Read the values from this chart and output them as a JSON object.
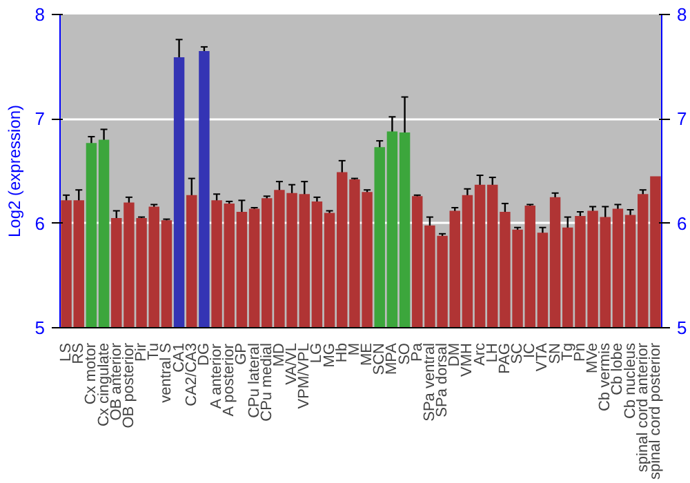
{
  "chart_data": {
    "type": "bar",
    "ylabel": "Log2 (expression)",
    "categories": [
      "LS",
      "RS",
      "Cx motor",
      "Cx cingulate",
      "OB anterior",
      "OB posterior",
      "Pir",
      "Tu",
      "ventral S",
      "CA1",
      "CA2/CA3",
      "DG",
      "A anterior",
      "A posterior",
      "GP",
      "CPu lateral",
      "CPu medial",
      "MD",
      "VA/VL",
      "VPM/VPL",
      "LG",
      "MG",
      "Hb",
      "M",
      "ME",
      "SCN",
      "MPA",
      "SO",
      "Pa",
      "SPa ventral",
      "SPa dorsal",
      "DM",
      "VMH",
      "Arc",
      "LH",
      "PAG",
      "SC",
      "IC",
      "VTA",
      "SN",
      "Tg",
      "Pn",
      "MVe",
      "Cb vermis",
      "Cb lobe",
      "Cb nucleus",
      "spinal cord anterior",
      "spinal cord posterior"
    ],
    "values": [
      6.22,
      6.22,
      6.77,
      6.8,
      6.05,
      6.2,
      6.05,
      6.16,
      6.03,
      7.59,
      6.27,
      7.65,
      6.22,
      6.19,
      6.11,
      6.14,
      6.24,
      6.32,
      6.29,
      6.28,
      6.21,
      6.1,
      6.49,
      6.42,
      6.3,
      6.73,
      6.88,
      6.87,
      6.26,
      5.98,
      5.88,
      6.12,
      6.27,
      6.37,
      6.37,
      6.11,
      5.94,
      6.17,
      5.91,
      6.25,
      5.96,
      6.07,
      6.12,
      6.06,
      6.14,
      6.08,
      6.28,
      6.45
    ],
    "errors": [
      0.05,
      0.1,
      0.06,
      0.1,
      0.07,
      0.05,
      0.01,
      0.02,
      0.01,
      0.17,
      0.16,
      0.04,
      0.06,
      0.02,
      0.11,
      0.01,
      0.02,
      0.08,
      0.08,
      0.12,
      0.04,
      0.02,
      0.11,
      0.01,
      0.02,
      0.06,
      0.14,
      0.34,
      0.01,
      0.08,
      0.02,
      0.03,
      0.06,
      0.09,
      0.07,
      0.08,
      0.02,
      0.01,
      0.05,
      0.04,
      0.1,
      0.04,
      0.04,
      0.1,
      0.04,
      0.05,
      0.04,
      null
    ],
    "colors": [
      "#b03434",
      "#b03434",
      "#3ca63c",
      "#3ca63c",
      "#b03434",
      "#b03434",
      "#b03434",
      "#b03434",
      "#b03434",
      "#3434b4",
      "#b03434",
      "#3434b4",
      "#b03434",
      "#b03434",
      "#b03434",
      "#b03434",
      "#b03434",
      "#b03434",
      "#b03434",
      "#b03434",
      "#b03434",
      "#b03434",
      "#b03434",
      "#b03434",
      "#b03434",
      "#3ca63c",
      "#3ca63c",
      "#3ca63c",
      "#b03434",
      "#b03434",
      "#b03434",
      "#b03434",
      "#b03434",
      "#b03434",
      "#b03434",
      "#b03434",
      "#b03434",
      "#b03434",
      "#b03434",
      "#b03434",
      "#b03434",
      "#b03434",
      "#b03434",
      "#b03434",
      "#b03434",
      "#b03434",
      "#b03434",
      "#b03434"
    ],
    "ylim": [
      5,
      8
    ],
    "yticks": [
      5,
      6,
      7,
      8
    ],
    "y2lim": [
      5,
      8
    ],
    "y2ticks": [
      5,
      6,
      7,
      8
    ],
    "grid": "y"
  }
}
